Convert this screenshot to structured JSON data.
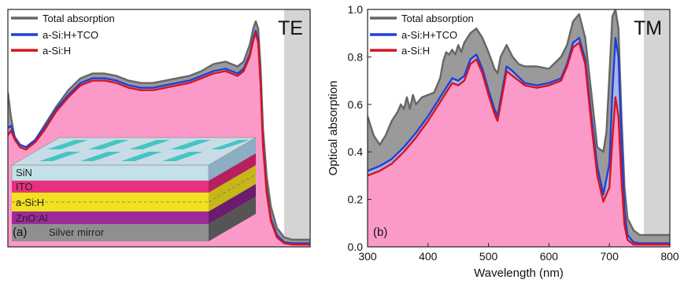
{
  "chart_data": [
    {
      "type": "area",
      "panel_label": "(a)",
      "mode_label": "TE",
      "xlabel": "",
      "ylabel": "",
      "xlim": [
        300,
        800
      ],
      "ylim": [
        0,
        1.0
      ],
      "axis_ticks_labeled": false,
      "shaded_region": [
        757,
        800
      ],
      "legend": {
        "placement": "top-left",
        "entries": [
          "Total absorption",
          "a-Si:H+TCO",
          "a-Si:H"
        ]
      },
      "series": [
        {
          "name": "Total absorption",
          "color": "#666666",
          "fill": "#9a9a9a",
          "x": [
            300,
            305,
            312,
            320,
            330,
            345,
            360,
            380,
            400,
            420,
            440,
            460,
            480,
            500,
            520,
            540,
            560,
            580,
            600,
            620,
            640,
            660,
            670,
            680,
            690,
            700,
            706,
            710,
            714,
            718,
            722,
            728,
            735,
            745,
            757,
            770,
            785,
            800
          ],
          "values": [
            0.65,
            0.55,
            0.45,
            0.43,
            0.42,
            0.45,
            0.51,
            0.59,
            0.66,
            0.71,
            0.73,
            0.73,
            0.72,
            0.7,
            0.69,
            0.69,
            0.7,
            0.71,
            0.72,
            0.74,
            0.77,
            0.78,
            0.77,
            0.76,
            0.78,
            0.85,
            0.92,
            0.95,
            0.92,
            0.76,
            0.5,
            0.3,
            0.17,
            0.08,
            0.04,
            0.03,
            0.03,
            0.03
          ]
        },
        {
          "name": "a-Si:H+TCO",
          "color": "#1f3fd6",
          "fill": "#a7b6e6",
          "x": [
            300,
            305,
            312,
            320,
            330,
            345,
            360,
            380,
            400,
            420,
            440,
            460,
            480,
            500,
            520,
            540,
            560,
            580,
            600,
            620,
            640,
            660,
            670,
            680,
            690,
            700,
            706,
            710,
            714,
            718,
            722,
            728,
            735,
            745,
            757,
            770,
            785,
            800
          ],
          "values": [
            0.5,
            0.51,
            0.46,
            0.43,
            0.42,
            0.45,
            0.5,
            0.58,
            0.64,
            0.69,
            0.71,
            0.71,
            0.7,
            0.68,
            0.67,
            0.67,
            0.68,
            0.69,
            0.7,
            0.72,
            0.74,
            0.75,
            0.74,
            0.73,
            0.75,
            0.81,
            0.88,
            0.91,
            0.87,
            0.7,
            0.44,
            0.24,
            0.12,
            0.05,
            0.02,
            0.015,
            0.015,
            0.015
          ]
        },
        {
          "name": "a-Si:H",
          "color": "#d7141d",
          "fill": "#fb9ac8",
          "x": [
            300,
            305,
            312,
            320,
            330,
            345,
            360,
            380,
            400,
            420,
            440,
            460,
            480,
            500,
            520,
            540,
            560,
            580,
            600,
            620,
            640,
            660,
            670,
            680,
            690,
            700,
            706,
            710,
            714,
            718,
            722,
            728,
            735,
            745,
            757,
            770,
            785,
            800
          ],
          "values": [
            0.47,
            0.49,
            0.45,
            0.42,
            0.41,
            0.44,
            0.49,
            0.57,
            0.63,
            0.68,
            0.7,
            0.7,
            0.69,
            0.67,
            0.66,
            0.66,
            0.67,
            0.68,
            0.69,
            0.71,
            0.73,
            0.74,
            0.73,
            0.72,
            0.74,
            0.8,
            0.87,
            0.9,
            0.86,
            0.69,
            0.43,
            0.23,
            0.11,
            0.04,
            0.015,
            0.01,
            0.01,
            0.01
          ]
        }
      ],
      "inset": {
        "layers": [
          "SiN",
          "ITO",
          "a-Si:H",
          "ZnO:Al",
          "Silver mirror"
        ],
        "colors": {
          "SiN": "#6fd6dd",
          "ITO": "#e8307e",
          "a-Si:H": "#f1e11f",
          "ZnO:Al": "#9c2a9b",
          "Silver mirror": "#8f8f8f",
          "ridges": "#45c4c4"
        }
      }
    },
    {
      "type": "area",
      "panel_label": "(b)",
      "mode_label": "TM",
      "xlabel": "Wavelength (nm)",
      "ylabel": "Optical absorption",
      "xlim": [
        300,
        800
      ],
      "ylim": [
        0,
        1.0
      ],
      "xticks": [
        300,
        400,
        500,
        600,
        700,
        800
      ],
      "xtick_labels": [
        "300",
        "400",
        "500",
        "600",
        "700",
        "800"
      ],
      "yticks": [
        0,
        0.2,
        0.4,
        0.6,
        0.8,
        1.0
      ],
      "ytick_labels": [
        "0.0",
        "0.2",
        "0.4",
        "0.6",
        "0.8",
        "1.0"
      ],
      "shaded_region": [
        757,
        800
      ],
      "legend": {
        "placement": "top-left",
        "entries": [
          "Total absorption",
          "a-Si:H+TCO",
          "a-Si:H"
        ]
      },
      "series": [
        {
          "name": "Total absorption",
          "color": "#666666",
          "fill": "#9a9a9a",
          "x": [
            300,
            310,
            320,
            330,
            340,
            350,
            355,
            360,
            365,
            370,
            375,
            380,
            390,
            400,
            410,
            420,
            425,
            430,
            435,
            440,
            445,
            450,
            455,
            460,
            470,
            480,
            490,
            500,
            510,
            515,
            520,
            530,
            540,
            550,
            560,
            570,
            580,
            600,
            620,
            630,
            640,
            650,
            660,
            670,
            680,
            690,
            695,
            700,
            705,
            710,
            715,
            720,
            725,
            730,
            740,
            750,
            760,
            780,
            800
          ],
          "values": [
            0.55,
            0.47,
            0.43,
            0.47,
            0.53,
            0.57,
            0.6,
            0.58,
            0.63,
            0.58,
            0.64,
            0.6,
            0.63,
            0.64,
            0.65,
            0.71,
            0.78,
            0.82,
            0.81,
            0.83,
            0.81,
            0.85,
            0.82,
            0.86,
            0.9,
            0.92,
            0.88,
            0.82,
            0.75,
            0.73,
            0.8,
            0.85,
            0.8,
            0.77,
            0.76,
            0.76,
            0.76,
            0.75,
            0.8,
            0.85,
            0.95,
            0.98,
            0.88,
            0.65,
            0.42,
            0.4,
            0.48,
            0.72,
            0.97,
            1.0,
            0.92,
            0.55,
            0.25,
            0.12,
            0.07,
            0.05,
            0.05,
            0.05,
            0.05
          ]
        },
        {
          "name": "a-Si:H+TCO",
          "color": "#1f3fd6",
          "fill": "#a7b6e6",
          "x": [
            300,
            320,
            340,
            360,
            380,
            400,
            420,
            440,
            450,
            460,
            470,
            480,
            490,
            500,
            510,
            515,
            520,
            530,
            540,
            560,
            580,
            600,
            620,
            630,
            640,
            650,
            660,
            670,
            680,
            690,
            700,
            705,
            710,
            715,
            720,
            725,
            730,
            740,
            750,
            760,
            800
          ],
          "values": [
            0.32,
            0.34,
            0.37,
            0.42,
            0.48,
            0.55,
            0.63,
            0.71,
            0.7,
            0.72,
            0.79,
            0.81,
            0.75,
            0.66,
            0.58,
            0.55,
            0.62,
            0.76,
            0.74,
            0.69,
            0.68,
            0.69,
            0.71,
            0.77,
            0.86,
            0.88,
            0.79,
            0.55,
            0.34,
            0.22,
            0.35,
            0.65,
            0.88,
            0.8,
            0.45,
            0.15,
            0.05,
            0.02,
            0.015,
            0.015,
            0.015
          ]
        },
        {
          "name": "a-Si:H",
          "color": "#d7141d",
          "fill": "#fb9ac8",
          "x": [
            300,
            320,
            340,
            360,
            380,
            400,
            420,
            440,
            450,
            460,
            470,
            480,
            490,
            500,
            510,
            515,
            520,
            530,
            540,
            560,
            580,
            600,
            620,
            630,
            640,
            650,
            660,
            670,
            680,
            690,
            700,
            705,
            710,
            715,
            720,
            725,
            730,
            740,
            750,
            760,
            800
          ],
          "values": [
            0.3,
            0.32,
            0.35,
            0.4,
            0.46,
            0.53,
            0.61,
            0.69,
            0.68,
            0.7,
            0.77,
            0.79,
            0.73,
            0.64,
            0.56,
            0.53,
            0.6,
            0.74,
            0.72,
            0.68,
            0.67,
            0.68,
            0.7,
            0.76,
            0.84,
            0.86,
            0.77,
            0.52,
            0.3,
            0.19,
            0.25,
            0.45,
            0.63,
            0.55,
            0.28,
            0.09,
            0.03,
            0.01,
            0.01,
            0.01,
            0.01
          ]
        }
      ]
    }
  ]
}
